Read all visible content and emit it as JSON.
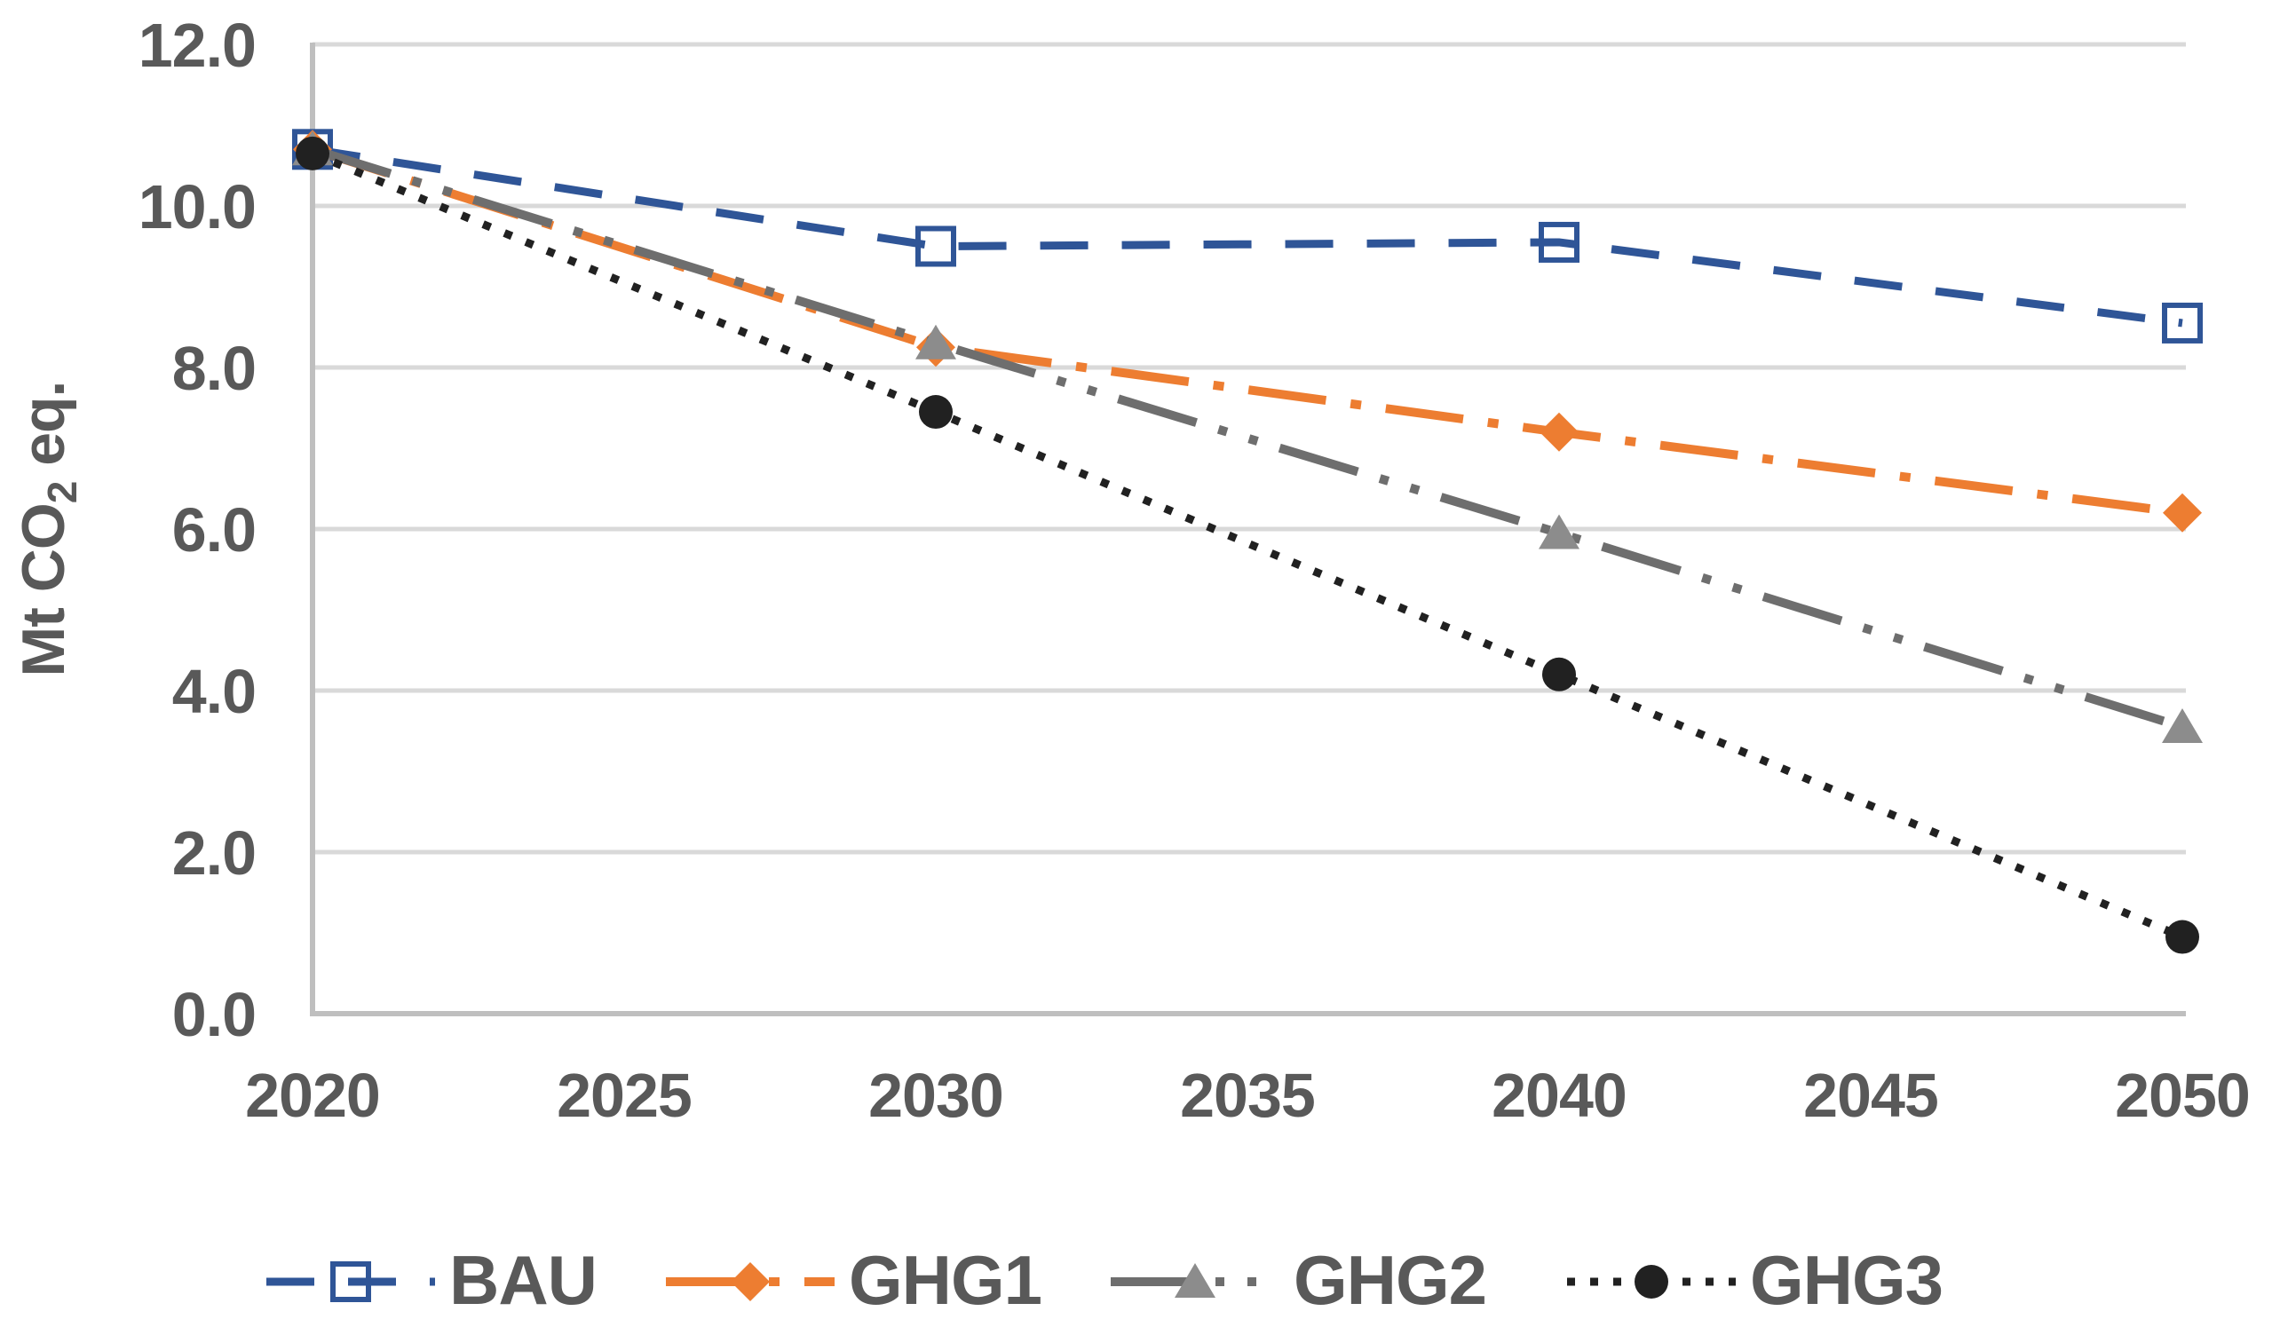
{
  "chart_data": {
    "type": "line",
    "title": "",
    "xlabel": "",
    "ylabel": "Mt CO2 eq.",
    "ylabel_parts": {
      "main": "Mt CO",
      "subscript": "2",
      "suffix": " eq."
    },
    "x": [
      2020,
      2030,
      2040,
      2050
    ],
    "xticks": [
      "2020",
      "2025",
      "2030",
      "2035",
      "2040",
      "2045",
      "2050"
    ],
    "yticks": [
      "12.0",
      "10.0",
      "8.0",
      "6.0",
      "4.0",
      "2.0",
      "0.0"
    ],
    "ytick_values": [
      12,
      10,
      8,
      6,
      4,
      2,
      0
    ],
    "xlim": [
      2020,
      2050
    ],
    "ylim": [
      0,
      12
    ],
    "grid": true,
    "legend_position": "bottom",
    "series": [
      {
        "name": "BAU",
        "color": "#2F5597",
        "marker": "open-square",
        "marker_color": "#2F5597",
        "line_style": "dash",
        "values": [
          10.7,
          9.5,
          9.55,
          8.55
        ]
      },
      {
        "name": "GHG1",
        "color": "#ED7D31",
        "marker": "diamond",
        "marker_color": "#ED7D31",
        "line_style": "dash-dot",
        "values": [
          10.7,
          8.25,
          7.2,
          6.2
        ]
      },
      {
        "name": "GHG2",
        "color": "#6E6E6E",
        "marker": "triangle",
        "marker_color": "#8C8C8C",
        "line_style": "dash-dot-dot",
        "values": [
          10.7,
          8.3,
          5.95,
          3.55
        ]
      },
      {
        "name": "GHG3",
        "color": "#212121",
        "marker": "circle",
        "marker_color": "#212121",
        "line_style": "dot",
        "values": [
          10.65,
          7.45,
          4.2,
          0.95
        ]
      }
    ],
    "colors": {
      "text": "#595959",
      "gridline": "#D9D9D9",
      "axis_line": "#BFBFBF",
      "background": "#FFFFFF"
    }
  }
}
